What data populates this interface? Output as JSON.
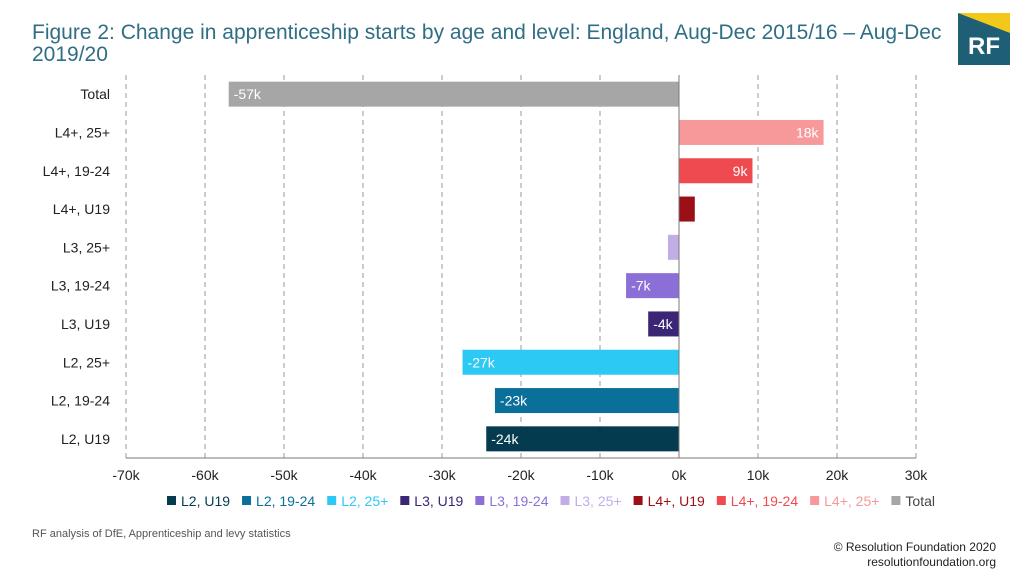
{
  "title": "Figure 2: Change in apprenticeship starts by age and level: England, Aug-Dec 2015/16 – Aug-Dec 2019/20",
  "logo_text": "RF",
  "source": "RF analysis of DfE, Apprenticeship and levy statistics",
  "copyright": "© Resolution Foundation 2020",
  "website": "resolutionfoundation.org",
  "chart_data": {
    "type": "bar",
    "orientation": "horizontal",
    "categories": [
      "Total",
      "L4+, 25+",
      "L4+, 19-24",
      "L4+, U19",
      "L3, 25+",
      "L3, 19-24",
      "L3, U19",
      "L2, 25+",
      "L2, 19-24",
      "L2, U19"
    ],
    "values": [
      -57,
      18.3,
      9.3,
      2,
      -1.4,
      -6.7,
      -3.9,
      -27.4,
      -23.3,
      -24.4
    ],
    "data_labels": [
      "-57k",
      "18k",
      "9k",
      "",
      "",
      "-7k",
      "-4k",
      "-27k",
      "-23k",
      "-24k"
    ],
    "colors": [
      "#a6a6a6",
      "#f7999a",
      "#ee4a4f",
      "#9b1016",
      "#c2aee6",
      "#8c6fd6",
      "#3b2575",
      "#2cc9f5",
      "#0a6f99",
      "#053b4f"
    ],
    "xlim": [
      -70,
      30
    ],
    "xticks": [
      "-70k",
      "-60k",
      "-50k",
      "-40k",
      "-30k",
      "-20k",
      "-10k",
      "0k",
      "10k",
      "20k",
      "30k"
    ],
    "xtick_values": [
      -70,
      -60,
      -50,
      -40,
      -30,
      -20,
      -10,
      0,
      10,
      20,
      30
    ],
    "grid": true,
    "legend_position": "bottom",
    "legend": [
      {
        "label": "L2, U19",
        "color": "#053b4f",
        "text_color": "#053b4f"
      },
      {
        "label": "L2, 19-24",
        "color": "#0a6f99",
        "text_color": "#0a6f99"
      },
      {
        "label": "L2, 25+",
        "color": "#2cc9f5",
        "text_color": "#2cc9f5"
      },
      {
        "label": "L3, U19",
        "color": "#3b2575",
        "text_color": "#3b2575"
      },
      {
        "label": "L3, 19-24",
        "color": "#8c6fd6",
        "text_color": "#8c6fd6"
      },
      {
        "label": "L3, 25+",
        "color": "#c2aee6",
        "text_color": "#c2aee6"
      },
      {
        "label": "L4+, U19",
        "color": "#9b1016",
        "text_color": "#9b1016"
      },
      {
        "label": "L4+, 19-24",
        "color": "#ee4a4f",
        "text_color": "#ee4a4f"
      },
      {
        "label": "L4+, 25+",
        "color": "#f7999a",
        "text_color": "#f7999a"
      },
      {
        "label": "Total",
        "color": "#a6a6a6",
        "text_color": "#444444"
      }
    ]
  }
}
